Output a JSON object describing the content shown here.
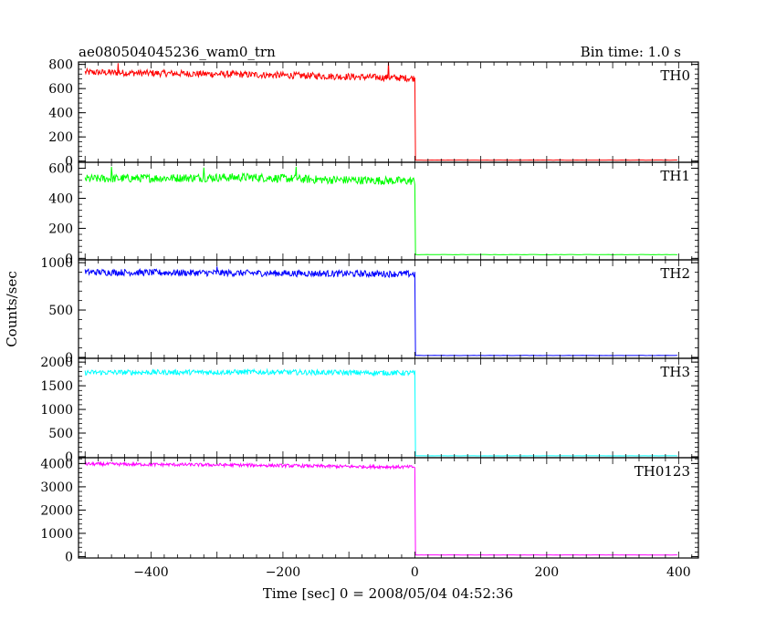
{
  "title_left": "ae080504045236_wam0_trn",
  "title_right": "Bin time: 1.0 s",
  "chart_data": {
    "type": "line",
    "title": "ae080504045236_wam0_trn",
    "subtitle": "Bin time: 1.0 s",
    "xlabel": "Time [sec] 0 = 2008/05/04 04:52:36",
    "ylabel": "Counts/sec",
    "xlim": [
      -510,
      430
    ],
    "x_ticks": [
      -400,
      -200,
      0,
      200,
      400
    ],
    "x_tick_labels": [
      "−400",
      "−200",
      "0",
      "200",
      "400"
    ],
    "grid": false,
    "panels": [
      {
        "name": "TH0",
        "color": "#ff0000",
        "ylim": [
          -10,
          820
        ],
        "y_ticks": [
          0,
          200,
          400,
          600,
          800
        ],
        "x_start": -500,
        "x_end": 0,
        "segments": [
          [
            -500,
            735
          ],
          [
            -300,
            720
          ],
          [
            -150,
            705
          ],
          [
            0,
            685
          ]
        ],
        "noise": 28,
        "spikes": [
          [
            -450,
            810
          ],
          [
            -40,
            820
          ]
        ],
        "after_level": 8,
        "x_stop": 400
      },
      {
        "name": "TH1",
        "color": "#00ff00",
        "ylim": [
          -10,
          640
        ],
        "y_ticks": [
          0,
          200,
          400,
          600
        ],
        "x_start": -500,
        "x_end": 0,
        "segments": [
          [
            -500,
            530
          ],
          [
            -250,
            540
          ],
          [
            -150,
            525
          ],
          [
            0,
            515
          ]
        ],
        "noise": 28,
        "spikes": [
          [
            -460,
            610
          ],
          [
            -320,
            605
          ],
          [
            -180,
            610
          ]
        ],
        "after_level": 25,
        "x_stop": 400
      },
      {
        "name": "TH2",
        "color": "#0000ff",
        "ylim": [
          -10,
          1030
        ],
        "y_ticks": [
          0,
          500,
          1000
        ],
        "x_start": -500,
        "x_end": 0,
        "segments": [
          [
            -500,
            900
          ],
          [
            -250,
            890
          ],
          [
            0,
            880
          ]
        ],
        "noise": 35,
        "spikes": [
          [
            -300,
            960
          ]
        ],
        "after_level": 20,
        "x_stop": 400
      },
      {
        "name": "TH3",
        "color": "#00ffff",
        "ylim": [
          -20,
          2080
        ],
        "y_ticks": [
          0,
          500,
          1000,
          1500,
          2000
        ],
        "x_start": -500,
        "x_end": 0,
        "segments": [
          [
            -500,
            1780
          ],
          [
            -250,
            1790
          ],
          [
            0,
            1770
          ]
        ],
        "noise": 55,
        "spikes": [],
        "after_level": 20,
        "x_stop": 400
      },
      {
        "name": "TH0123",
        "color": "#ff00ff",
        "ylim": [
          -60,
          4250
        ],
        "y_ticks": [
          0,
          1000,
          2000,
          3000,
          4000
        ],
        "x_start": -500,
        "x_end": 0,
        "segments": [
          [
            -500,
            3980
          ],
          [
            -250,
            3930
          ],
          [
            -100,
            3870
          ],
          [
            0,
            3850
          ]
        ],
        "noise": 70,
        "spikes": [],
        "after_level": 70,
        "x_stop": 400
      }
    ]
  }
}
